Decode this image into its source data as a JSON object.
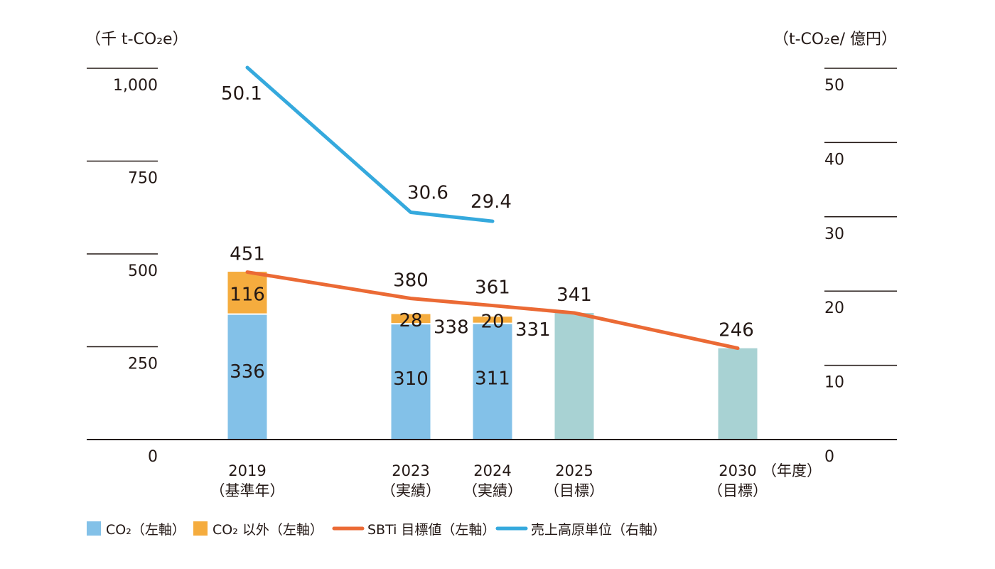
{
  "chart_data": {
    "type": "bar",
    "left_axis": {
      "unit_label": "（千 t-CO₂e）",
      "ticks": [
        "1,000",
        "750",
        "500",
        "250",
        "0"
      ],
      "tick_values": [
        1000,
        750,
        500,
        250,
        0
      ],
      "range": [
        0,
        1000
      ]
    },
    "right_axis": {
      "unit_label": "（t-CO₂e/ 億円）",
      "ticks": [
        "50",
        "40",
        "30",
        "20",
        "10",
        "0"
      ],
      "tick_values": [
        50,
        40,
        30,
        20,
        10,
        0
      ],
      "range": [
        0,
        50
      ]
    },
    "x_unit_label": "（年度）",
    "categories": [
      {
        "year": "2019",
        "note": "（基準年）",
        "x": 2019
      },
      {
        "year": "2023",
        "note": "（実績）",
        "x": 2023
      },
      {
        "year": "2024",
        "note": "（実績）",
        "x": 2024
      },
      {
        "year": "2025",
        "note": "（目標）",
        "x": 2025
      },
      {
        "year": "2030",
        "note": "（目標）",
        "x": 2030
      }
    ],
    "bars": [
      {
        "x": 2019,
        "co2": 336,
        "non_co2": 116,
        "total_label": "451",
        "co2_label": "336",
        "non_co2_label": "116",
        "target": false
      },
      {
        "x": 2023,
        "co2": 310,
        "non_co2": 28,
        "total_label": "380",
        "co2_label": "310",
        "non_co2_label": "28",
        "side_label": "338",
        "target": false
      },
      {
        "x": 2024,
        "co2": 311,
        "non_co2": 20,
        "total_label": "361",
        "co2_label": "311",
        "non_co2_label": "20",
        "side_label": "331",
        "target": false
      },
      {
        "x": 2025,
        "co2": 341,
        "non_co2": 0,
        "total_label": "341",
        "target": true
      },
      {
        "x": 2030,
        "co2": 246,
        "non_co2": 0,
        "total_label": "246",
        "target": true
      }
    ],
    "sbti_line": {
      "x": [
        2019,
        2023,
        2024,
        2025,
        2030
      ],
      "values": [
        451,
        380,
        361,
        341,
        246
      ]
    },
    "intensity_line": {
      "x": [
        2019,
        2023,
        2024
      ],
      "values": [
        50.1,
        30.6,
        29.4
      ],
      "labels": [
        "50.1",
        "30.6",
        "29.4"
      ]
    },
    "legend": [
      {
        "label": "CO₂（左軸）",
        "kind": "box",
        "color": "#83c1e8"
      },
      {
        "label": "CO₂ 以外（左軸）",
        "kind": "box",
        "color": "#f5ac3e"
      },
      {
        "label": "SBTi 目標値（左軸）",
        "kind": "line",
        "color": "#eb6a35"
      },
      {
        "label": "売上高原単位（右軸）",
        "kind": "line",
        "color": "#35a9dd"
      }
    ],
    "colors": {
      "co2": "#83c1e8",
      "non_co2": "#f5ac3e",
      "target": "#a8d2d3",
      "sbti": "#eb6a35",
      "intensity": "#35a9dd",
      "axis": "#231815"
    }
  }
}
